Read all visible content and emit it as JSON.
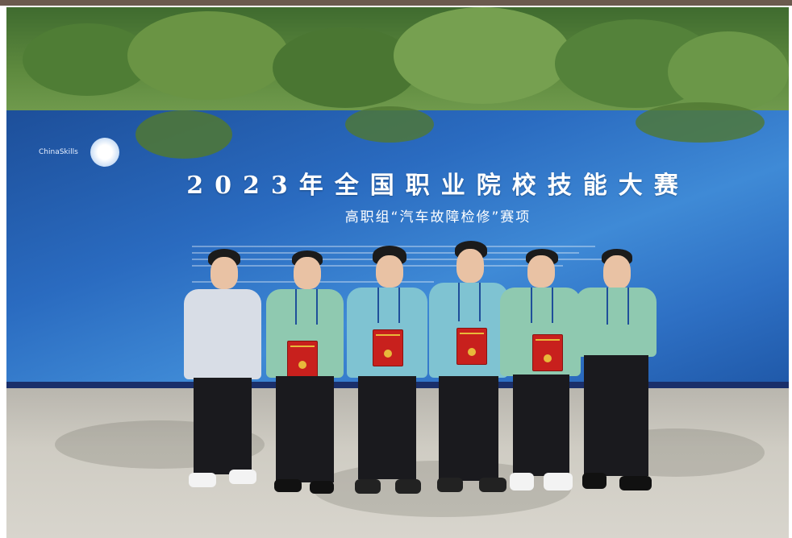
{
  "photo": {
    "banner": {
      "logo_label": "ChinaSkills",
      "title": "2023年全国职业院校技能大赛",
      "subtitle": "高职组“汽车故障检修”赛项"
    },
    "people_count": 6,
    "certificates_count": 4,
    "colors": {
      "banner_blue": "#2a6bc0",
      "shirt_green": "#8fc9b0",
      "shirt_teal": "#7fc3d2",
      "certificate_red": "#c8201d"
    }
  }
}
